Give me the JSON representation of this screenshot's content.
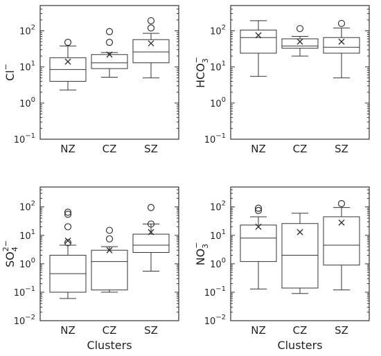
{
  "chart_data": [
    {
      "type": "box",
      "ylabel_base": "Cl",
      "ylabel_sub": "",
      "ylabel_sup": "−",
      "yscale": "log",
      "ylim": [
        0.1,
        500
      ],
      "yticks": [
        {
          "value": 0.1,
          "base": "10",
          "exp": "−1"
        },
        {
          "value": 1,
          "base": "10",
          "exp": "0"
        },
        {
          "value": 10,
          "base": "10",
          "exp": "1"
        },
        {
          "value": 100,
          "base": "10",
          "exp": "2"
        }
      ],
      "xlabel": "",
      "categories": [
        "NZ",
        "CZ",
        "SZ"
      ],
      "boxes": [
        {
          "min": 2.3,
          "q1": 4.0,
          "median": 8.5,
          "q3": 18,
          "max": 38,
          "mean": 14,
          "outliers": [
            48
          ]
        },
        {
          "min": 5.2,
          "q1": 9.0,
          "median": 13,
          "q3": 22,
          "max": 25,
          "mean": 22,
          "outliers": [
            48,
            95
          ]
        },
        {
          "min": 5.0,
          "q1": 13,
          "median": 26,
          "q3": 57,
          "max": 85,
          "mean": 45,
          "outliers": [
            120,
            190
          ]
        }
      ]
    },
    {
      "type": "box",
      "ylabel_base": "HCO",
      "ylabel_sub": "3",
      "ylabel_sup": "−",
      "yscale": "log",
      "ylim": [
        0.1,
        500
      ],
      "yticks": [
        {
          "value": 0.1,
          "base": "10",
          "exp": "−1"
        },
        {
          "value": 1,
          "base": "10",
          "exp": "0"
        },
        {
          "value": 10,
          "base": "10",
          "exp": "1"
        },
        {
          "value": 100,
          "base": "10",
          "exp": "2"
        }
      ],
      "xlabel": "",
      "categories": [
        "NZ",
        "CZ",
        "SZ"
      ],
      "boxes": [
        {
          "min": 5.5,
          "q1": 24,
          "median": 65,
          "q3": 105,
          "max": 190,
          "mean": 75,
          "outliers": []
        },
        {
          "min": 20,
          "q1": 33,
          "median": 38,
          "q3": 60,
          "max": 70,
          "mean": 50,
          "outliers": [
            115
          ]
        },
        {
          "min": 5.0,
          "q1": 24,
          "median": 35,
          "q3": 65,
          "max": 120,
          "mean": 50,
          "outliers": [
            160
          ]
        }
      ]
    },
    {
      "type": "box",
      "ylabel_base": "SO",
      "ylabel_sub": "4",
      "ylabel_sup": "2−",
      "yscale": "log",
      "ylim": [
        0.01,
        500
      ],
      "yticks": [
        {
          "value": 0.01,
          "base": "10",
          "exp": "−2"
        },
        {
          "value": 0.1,
          "base": "10",
          "exp": "−1"
        },
        {
          "value": 1,
          "base": "10",
          "exp": "0"
        },
        {
          "value": 10,
          "base": "10",
          "exp": "1"
        },
        {
          "value": 100,
          "base": "10",
          "exp": "2"
        }
      ],
      "xlabel": "Clusters",
      "categories": [
        "NZ",
        "CZ",
        "SZ"
      ],
      "boxes": [
        {
          "min": 0.06,
          "q1": 0.1,
          "median": 0.45,
          "q3": 2.0,
          "max": 4.5,
          "mean": 6.5,
          "outliers": [
            5.5,
            20,
            55,
            65
          ]
        },
        {
          "min": 0.1,
          "q1": 0.12,
          "median": 1.2,
          "q3": 3.0,
          "max": 4.0,
          "mean": 3.0,
          "outliers": [
            7.5,
            15
          ]
        },
        {
          "min": 0.55,
          "q1": 2.5,
          "median": 4.5,
          "q3": 11,
          "max": 25,
          "mean": 13,
          "outliers": [
            25,
            95
          ]
        }
      ]
    },
    {
      "type": "box",
      "ylabel_base": "NO",
      "ylabel_sub": "3",
      "ylabel_sup": "−",
      "yscale": "log",
      "ylim": [
        0.01,
        500
      ],
      "yticks": [
        {
          "value": 0.01,
          "base": "10",
          "exp": "−2"
        },
        {
          "value": 0.1,
          "base": "10",
          "exp": "−1"
        },
        {
          "value": 1,
          "base": "10",
          "exp": "0"
        },
        {
          "value": 10,
          "base": "10",
          "exp": "1"
        },
        {
          "value": 100,
          "base": "10",
          "exp": "2"
        }
      ],
      "xlabel": "Clusters",
      "categories": [
        "NZ",
        "CZ",
        "SZ"
      ],
      "boxes": [
        {
          "min": 0.13,
          "q1": 1.2,
          "median": 8.0,
          "q3": 23,
          "max": 45,
          "mean": 20,
          "outliers": [
            75,
            90
          ]
        },
        {
          "min": 0.09,
          "q1": 0.14,
          "median": 2.0,
          "q3": 26,
          "max": 60,
          "mean": 13,
          "outliers": []
        },
        {
          "min": 0.12,
          "q1": 0.9,
          "median": 4.5,
          "q3": 45,
          "max": 95,
          "mean": 28,
          "outliers": [
            130
          ]
        }
      ]
    }
  ]
}
